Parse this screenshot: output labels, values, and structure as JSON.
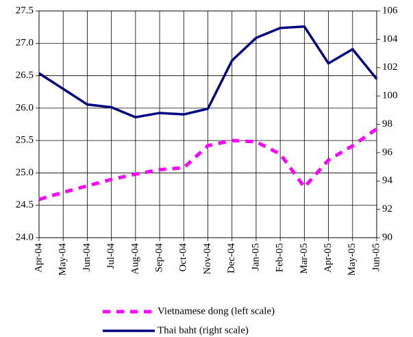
{
  "chart_data": {
    "type": "line",
    "categories": [
      "Apr-04",
      "May-04",
      "Jun-04",
      "Jul-04",
      "Aug-04",
      "Sep-04",
      "Oct-04",
      "Nov-04",
      "Dec-04",
      "Jan-05",
      "Feb-05",
      "Mar-05",
      "Apr-05",
      "May-05",
      "Jun-05"
    ],
    "series": [
      {
        "name": "Vietnamese dong (left scale)",
        "color": "#ff00ff",
        "dashed": true,
        "values": [
          24.59,
          24.7,
          24.8,
          24.9,
          24.98,
          25.05,
          25.08,
          25.42,
          25.5,
          25.48,
          25.29,
          24.78,
          25.2,
          25.42,
          25.68
        ]
      },
      {
        "name": "Thai baht (right scale)",
        "color": "#000080",
        "axis": "y2",
        "values": [
          101.6,
          100.5,
          99.4,
          99.2,
          98.5,
          98.8,
          98.7,
          99.1,
          102.5,
          104.1,
          104.8,
          104.9,
          102.3,
          103.3,
          101.2
        ]
      }
    ],
    "ylim": [
      24.0,
      27.5
    ],
    "yticks": [
      {
        "value": 24.0,
        "label": "24.0"
      },
      24.5,
      {
        "value": 25.0,
        "label": "25.0"
      },
      25.5,
      {
        "value": 26.0,
        "label": "26.0"
      },
      26.5,
      {
        "value": 27.0,
        "label": "27.0"
      },
      27.5
    ],
    "y2lim": [
      90,
      106
    ],
    "y2ticks": [
      90,
      92,
      94,
      96,
      98,
      100,
      102,
      104,
      106
    ],
    "grid": true
  }
}
